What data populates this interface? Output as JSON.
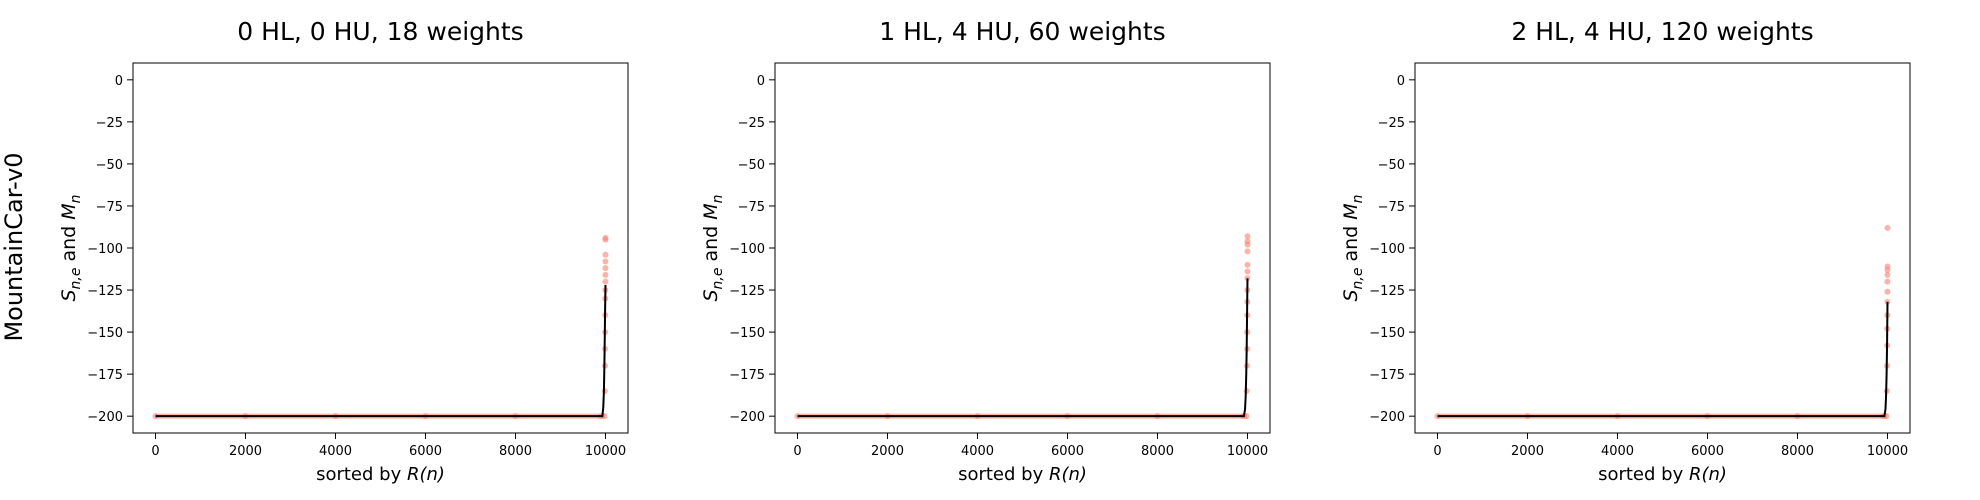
{
  "figure": {
    "row_label": "MountainCar-v0"
  },
  "chart_data": [
    {
      "type": "line",
      "title": "0 HL, 0 HU, 18 weights",
      "xlabel": "sorted by R(n)",
      "ylabel": "S_{n,e} and M_n",
      "xlim": [
        -500,
        10500
      ],
      "ylim": [
        -210,
        10
      ],
      "xticks": [
        0,
        2000,
        4000,
        6000,
        8000,
        10000
      ],
      "yticks": [
        0,
        -25,
        -50,
        -75,
        -100,
        -125,
        -150,
        -175,
        -200
      ],
      "grid": false,
      "series": [
        {
          "role": "mean",
          "color": "#000000",
          "points": [
            [
              0,
              -200
            ],
            [
              9930,
              -200
            ],
            [
              9950,
              -195
            ],
            [
              9965,
              -185
            ],
            [
              9975,
              -170
            ],
            [
              9985,
              -150
            ],
            [
              9992,
              -135
            ],
            [
              10000,
              -122
            ]
          ]
        },
        {
          "role": "samples",
          "color": "#fa8072",
          "points": [
            [
              0,
              -200
            ],
            [
              2000,
              -200
            ],
            [
              4000,
              -200
            ],
            [
              6000,
              -200
            ],
            [
              8000,
              -200
            ],
            [
              9900,
              -200
            ],
            [
              9975,
              -200
            ],
            [
              9985,
              -185
            ],
            [
              9990,
              -170
            ],
            [
              9990,
              -160
            ],
            [
              9993,
              -150
            ],
            [
              9995,
              -140
            ],
            [
              9996,
              -130
            ],
            [
              9997,
              -125
            ],
            [
              9998,
              -120
            ],
            [
              9998,
              -116
            ],
            [
              9999,
              -112
            ],
            [
              9999,
              -108
            ],
            [
              10000,
              -104
            ],
            [
              10000,
              -95
            ],
            [
              10000,
              -94
            ]
          ]
        }
      ]
    },
    {
      "type": "line",
      "title": "1 HL, 4 HU, 60 weights",
      "xlabel": "sorted by R(n)",
      "ylabel": "S_{n,e} and M_n",
      "xlim": [
        -500,
        10500
      ],
      "ylim": [
        -210,
        10
      ],
      "xticks": [
        0,
        2000,
        4000,
        6000,
        8000,
        10000
      ],
      "yticks": [
        0,
        -25,
        -50,
        -75,
        -100,
        -125,
        -150,
        -175,
        -200
      ],
      "grid": false,
      "series": [
        {
          "role": "mean",
          "color": "#000000",
          "points": [
            [
              0,
              -200
            ],
            [
              9920,
              -200
            ],
            [
              9945,
              -196
            ],
            [
              9960,
              -188
            ],
            [
              9972,
              -175
            ],
            [
              9982,
              -160
            ],
            [
              9990,
              -140
            ],
            [
              10000,
              -118
            ]
          ]
        },
        {
          "role": "samples",
          "color": "#fa8072",
          "points": [
            [
              0,
              -200
            ],
            [
              2000,
              -200
            ],
            [
              4000,
              -200
            ],
            [
              6000,
              -200
            ],
            [
              8000,
              -200
            ],
            [
              9900,
              -200
            ],
            [
              9975,
              -200
            ],
            [
              9982,
              -185
            ],
            [
              9988,
              -170
            ],
            [
              9991,
              -160
            ],
            [
              9993,
              -150
            ],
            [
              9995,
              -140
            ],
            [
              9996,
              -132
            ],
            [
              9997,
              -125
            ],
            [
              9998,
              -118
            ],
            [
              9999,
              -114
            ],
            [
              9999,
              -110
            ],
            [
              10000,
              -102
            ],
            [
              10000,
              -98
            ],
            [
              10000,
              -96
            ],
            [
              10000,
              -93
            ]
          ]
        }
      ]
    },
    {
      "type": "line",
      "title": "2 HL, 4 HU, 120 weights",
      "xlabel": "sorted by R(n)",
      "ylabel": "S_{n,e} and M_n",
      "xlim": [
        -500,
        10500
      ],
      "ylim": [
        -210,
        10
      ],
      "xticks": [
        0,
        2000,
        4000,
        6000,
        8000,
        10000
      ],
      "yticks": [
        0,
        -25,
        -50,
        -75,
        -100,
        -125,
        -150,
        -175,
        -200
      ],
      "grid": false,
      "series": [
        {
          "role": "mean",
          "color": "#000000",
          "points": [
            [
              0,
              -200
            ],
            [
              9930,
              -200
            ],
            [
              9955,
              -196
            ],
            [
              9968,
              -188
            ],
            [
              9980,
              -175
            ],
            [
              9990,
              -158
            ],
            [
              10000,
              -132
            ]
          ]
        },
        {
          "role": "samples",
          "color": "#fa8072",
          "points": [
            [
              0,
              -200
            ],
            [
              2000,
              -200
            ],
            [
              4000,
              -200
            ],
            [
              6000,
              -200
            ],
            [
              8000,
              -200
            ],
            [
              9900,
              -200
            ],
            [
              9975,
              -200
            ],
            [
              9985,
              -185
            ],
            [
              9990,
              -170
            ],
            [
              9993,
              -158
            ],
            [
              9995,
              -148
            ],
            [
              9996,
              -140
            ],
            [
              9997,
              -132
            ],
            [
              9998,
              -126
            ],
            [
              9998,
              -120
            ],
            [
              9999,
              -116
            ],
            [
              9999,
              -113
            ],
            [
              10000,
              -111
            ],
            [
              10000,
              -88
            ]
          ]
        }
      ]
    }
  ]
}
